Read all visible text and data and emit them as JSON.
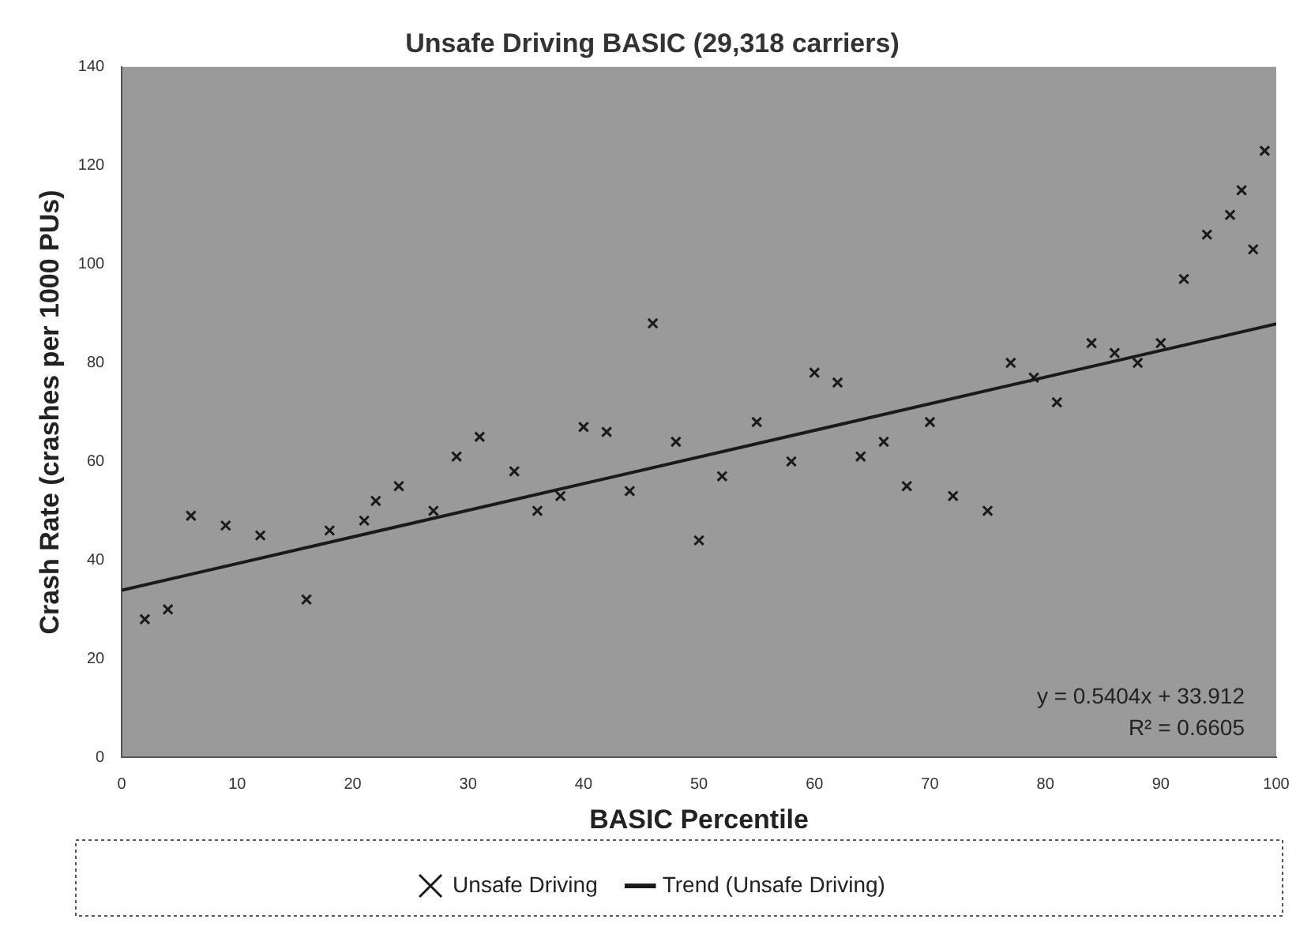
{
  "chart_data": {
    "type": "scatter",
    "title": "Unsafe Driving BASIC (29,318 carriers)",
    "xlabel": "BASIC Percentile",
    "ylabel": "Crash Rate (crashes per 1000 PUs)",
    "series": [
      {
        "name": "Unsafe Driving",
        "color": "#1a1a1a",
        "marker": "cross",
        "x": [
          2,
          4,
          6,
          9,
          12,
          16,
          18,
          21,
          22,
          24,
          27,
          29,
          31,
          34,
          36,
          38,
          40,
          42,
          44,
          46,
          48,
          50,
          52,
          55,
          58,
          60,
          62,
          64,
          66,
          68,
          70,
          72,
          75,
          77,
          79,
          81,
          84,
          86,
          88,
          90,
          92,
          94,
          96,
          97,
          98,
          99
        ],
        "values": [
          28,
          30,
          49,
          47,
          45,
          32,
          46,
          48,
          52,
          55,
          50,
          61,
          65,
          58,
          50,
          53,
          67,
          66,
          54,
          88,
          64,
          44,
          57,
          68,
          60,
          78,
          76,
          61,
          64,
          55,
          68,
          53,
          50,
          80,
          77,
          72,
          84,
          82,
          80,
          84,
          97,
          106,
          110,
          115,
          103,
          123
        ]
      },
      {
        "name": "Trend (Unsafe Driving)",
        "type": "line",
        "color": "#1a1a1a",
        "marker": "none",
        "x": [
          0,
          100
        ],
        "values": [
          33.9,
          87.9
        ]
      }
    ],
    "xlim": [
      0,
      100
    ],
    "xticks": [
      0,
      10,
      20,
      30,
      40,
      50,
      60,
      70,
      80,
      90,
      100
    ],
    "ylim": [
      0,
      140
    ],
    "yticks": [
      0,
      20,
      40,
      60,
      80,
      100,
      120,
      140
    ],
    "legend": "bottom",
    "annotations": [
      "y = 0.5404x + 33.912",
      "R² = 0.6605"
    ]
  }
}
